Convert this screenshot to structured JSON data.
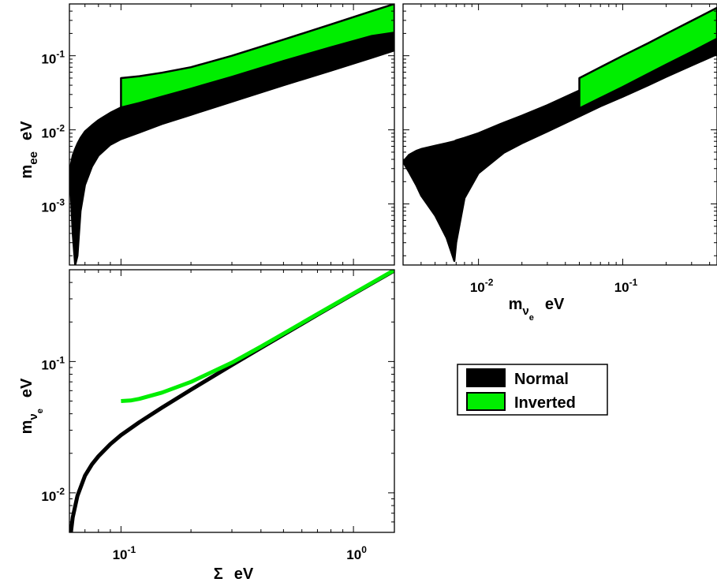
{
  "chart_data": [
    {
      "type": "area",
      "panel": "top-left",
      "xscale": "log",
      "yscale": "log",
      "xlim": [
        0.06,
        1.5
      ],
      "ylim": [
        0.00015,
        0.5
      ],
      "xticks": [],
      "yticks": [
        0.001,
        0.01,
        0.1
      ],
      "ytick_labels": [
        {
          "base": "10",
          "exp": "-3"
        },
        {
          "base": "10",
          "exp": "-2"
        },
        {
          "base": "10",
          "exp": "-1"
        }
      ],
      "ylabel": {
        "main": "m",
        "sub": "ee",
        "unit": "eV"
      },
      "series": [
        {
          "name": "Normal",
          "color": "#000000",
          "x": [
            0.06,
            0.061,
            0.062,
            0.0635,
            0.065,
            0.067,
            0.07,
            0.075,
            0.08,
            0.09,
            0.1,
            0.12,
            0.15,
            0.2,
            0.3,
            0.5,
            0.8,
            1.2,
            1.5
          ],
          "upper": [
            0.0025,
            0.0035,
            0.0045,
            0.0055,
            0.0065,
            0.0078,
            0.0095,
            0.0115,
            0.0135,
            0.017,
            0.02,
            0.025,
            0.032,
            0.043,
            0.063,
            0.104,
            0.165,
            0.245,
            0.3
          ],
          "lower": [
            0.0025,
            0.0012,
            0.0004,
            0.00015,
            0.0002,
            0.0008,
            0.0018,
            0.0032,
            0.0045,
            0.0063,
            0.0075,
            0.0092,
            0.012,
            0.016,
            0.024,
            0.04,
            0.063,
            0.094,
            0.118
          ]
        },
        {
          "name": "Inverted",
          "color": "#00ee00",
          "x": [
            0.1,
            0.12,
            0.15,
            0.2,
            0.3,
            0.5,
            0.8,
            1.2,
            1.5
          ],
          "upper": [
            0.05,
            0.053,
            0.059,
            0.07,
            0.1,
            0.165,
            0.265,
            0.4,
            0.5
          ],
          "lower": [
            0.02,
            0.023,
            0.028,
            0.036,
            0.052,
            0.085,
            0.13,
            0.185,
            0.205
          ]
        }
      ]
    },
    {
      "type": "area",
      "panel": "top-right",
      "xscale": "log",
      "yscale": "log",
      "xlim": [
        0.003,
        0.45
      ],
      "ylim": [
        0.00015,
        0.5
      ],
      "xticks": [
        0.01,
        0.1
      ],
      "xtick_labels": [
        {
          "base": "10",
          "exp": "-2"
        },
        {
          "base": "10",
          "exp": "-1"
        }
      ],
      "xlabel": {
        "main": "m",
        "sub": "ν",
        "subsub": "e",
        "unit": "eV"
      },
      "series": [
        {
          "name": "Normal",
          "color": "#000000",
          "x": [
            0.003,
            0.0033,
            0.0037,
            0.004,
            0.005,
            0.006,
            0.0068,
            0.007,
            0.008,
            0.01,
            0.015,
            0.02,
            0.03,
            0.05,
            0.07,
            0.1,
            0.15,
            0.2,
            0.3,
            0.45
          ],
          "upper": [
            0.0037,
            0.0046,
            0.0052,
            0.0055,
            0.0061,
            0.0066,
            0.007,
            0.0072,
            0.0078,
            0.009,
            0.0125,
            0.0155,
            0.0215,
            0.034,
            0.048,
            0.067,
            0.098,
            0.13,
            0.19,
            0.285
          ],
          "lower": [
            0.0037,
            0.0027,
            0.0018,
            0.0013,
            0.0007,
            0.00035,
            0.00017,
            0.0003,
            0.0012,
            0.0026,
            0.0049,
            0.0066,
            0.0095,
            0.0152,
            0.0208,
            0.028,
            0.04,
            0.052,
            0.074,
            0.105
          ]
        },
        {
          "name": "Inverted",
          "color": "#00ee00",
          "x": [
            0.05,
            0.07,
            0.1,
            0.15,
            0.2,
            0.3,
            0.45
          ],
          "upper": [
            0.05,
            0.07,
            0.1,
            0.148,
            0.198,
            0.296,
            0.445
          ],
          "lower": [
            0.0195,
            0.027,
            0.038,
            0.057,
            0.076,
            0.113,
            0.17
          ]
        }
      ]
    },
    {
      "type": "line",
      "panel": "bottom-left",
      "xscale": "log",
      "yscale": "log",
      "xlim": [
        0.06,
        1.5
      ],
      "ylim": [
        0.005,
        0.5
      ],
      "xticks": [
        0.1,
        1.0
      ],
      "yticks": [
        0.01,
        0.1
      ],
      "xtick_labels": [
        {
          "base": "10",
          "exp": "-1"
        },
        {
          "base": "10",
          "exp": "0"
        }
      ],
      "ytick_labels": [
        {
          "base": "10",
          "exp": "-2"
        },
        {
          "base": "10",
          "exp": "-1"
        }
      ],
      "xlabel": {
        "main": "Σ",
        "unit": "eV"
      },
      "ylabel": {
        "main": "m",
        "sub": "ν",
        "subsub": "e",
        "unit": "eV"
      },
      "series": [
        {
          "name": "Normal",
          "color": "#000000",
          "x": [
            0.0609,
            0.062,
            0.065,
            0.07,
            0.075,
            0.08,
            0.09,
            0.1,
            0.12,
            0.15,
            0.2,
            0.3,
            0.4,
            0.5,
            0.7,
            1.0,
            1.5
          ],
          "y": [
            0.005,
            0.0065,
            0.0095,
            0.0135,
            0.0165,
            0.019,
            0.0235,
            0.0275,
            0.0345,
            0.0445,
            0.061,
            0.094,
            0.127,
            0.16,
            0.227,
            0.327,
            0.493
          ]
        },
        {
          "name": "Inverted",
          "color": "#00ee00",
          "x": [
            0.1,
            0.11,
            0.12,
            0.15,
            0.2,
            0.3,
            0.4,
            0.5,
            0.7,
            1.0,
            1.5
          ],
          "y": [
            0.05,
            0.0505,
            0.052,
            0.058,
            0.07,
            0.098,
            0.13,
            0.163,
            0.23,
            0.33,
            0.497
          ]
        }
      ]
    }
  ],
  "legend": {
    "placement": "bottom-right",
    "entries": [
      {
        "label": "Normal",
        "color": "#000000"
      },
      {
        "label": "Inverted",
        "color": "#00ee00"
      }
    ]
  }
}
